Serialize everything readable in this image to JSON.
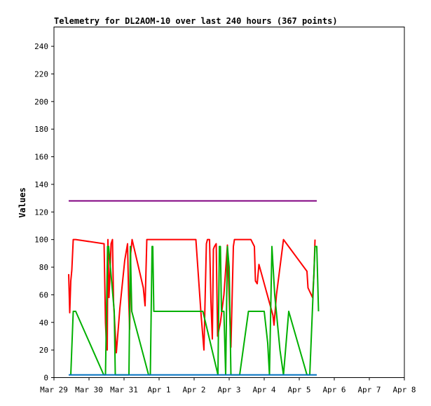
{
  "chart_data": {
    "type": "line",
    "title": "Telemetry for DL2AOM-10 over last 240 hours (367 points)",
    "xlabel": "",
    "ylabel": "Values",
    "x_ticks": [
      "Mar 29",
      "Mar 30",
      "Mar 31",
      "Apr 1",
      "Apr 2",
      "Apr 3",
      "Apr 4",
      "Apr 5",
      "Apr 6",
      "Apr 7",
      "Apr 8"
    ],
    "xlim": [
      0,
      10
    ],
    "ylim": [
      0,
      254
    ],
    "y_ticks": [
      0,
      20,
      40,
      60,
      80,
      100,
      120,
      140,
      160,
      180,
      200,
      220,
      240
    ],
    "grid": false,
    "series": [
      {
        "color": "#ff0000",
        "points": [
          [
            0.42,
            75
          ],
          [
            0.45,
            47
          ],
          [
            0.48,
            70
          ],
          [
            0.51,
            78
          ],
          [
            0.55,
            100
          ],
          [
            0.62,
            100
          ],
          [
            1.43,
            97
          ],
          [
            1.47,
            40
          ],
          [
            1.5,
            22
          ],
          [
            1.52,
            20
          ],
          [
            1.54,
            100
          ],
          [
            1.57,
            58
          ],
          [
            1.6,
            75
          ],
          [
            1.63,
            97
          ],
          [
            1.67,
            100
          ],
          [
            1.7,
            55
          ],
          [
            1.78,
            18
          ],
          [
            1.88,
            50
          ],
          [
            2.02,
            85
          ],
          [
            2.1,
            97
          ],
          [
            2.13,
            60
          ],
          [
            2.16,
            35
          ],
          [
            2.19,
            90
          ],
          [
            2.23,
            100
          ],
          [
            2.55,
            65
          ],
          [
            2.6,
            52
          ],
          [
            2.65,
            100
          ],
          [
            3.1,
            100
          ],
          [
            4.05,
            100
          ],
          [
            4.2,
            45
          ],
          [
            4.28,
            20
          ],
          [
            4.35,
            97
          ],
          [
            4.38,
            100
          ],
          [
            4.44,
            100
          ],
          [
            4.48,
            55
          ],
          [
            4.52,
            28
          ],
          [
            4.55,
            93
          ],
          [
            4.58,
            95
          ],
          [
            4.63,
            97
          ],
          [
            4.67,
            30
          ],
          [
            4.75,
            40
          ],
          [
            4.85,
            60
          ],
          [
            4.95,
            96
          ],
          [
            5.05,
            22
          ],
          [
            5.12,
            95
          ],
          [
            5.15,
            100
          ],
          [
            5.45,
            100
          ],
          [
            5.62,
            100
          ],
          [
            5.72,
            95
          ],
          [
            5.75,
            70
          ],
          [
            5.8,
            68
          ],
          [
            5.85,
            82
          ],
          [
            6.25,
            45
          ],
          [
            6.28,
            38
          ],
          [
            6.35,
            60
          ],
          [
            6.55,
            100
          ],
          [
            7.22,
            77
          ],
          [
            7.25,
            65
          ],
          [
            7.38,
            58
          ],
          [
            7.42,
            75
          ],
          [
            7.45,
            100
          ]
        ]
      },
      {
        "color": "#00b000",
        "points": [
          [
            0.48,
            2
          ],
          [
            0.55,
            48
          ],
          [
            0.62,
            48
          ],
          [
            1.42,
            2
          ],
          [
            1.47,
            2
          ],
          [
            1.53,
            95
          ],
          [
            1.56,
            95
          ],
          [
            1.72,
            48
          ],
          [
            1.75,
            2
          ],
          [
            1.82,
            2
          ],
          [
            2.14,
            2
          ],
          [
            2.18,
            95
          ],
          [
            2.22,
            48
          ],
          [
            2.7,
            2
          ],
          [
            2.75,
            2
          ],
          [
            2.8,
            95
          ],
          [
            2.82,
            95
          ],
          [
            2.85,
            48
          ],
          [
            3.25,
            48
          ],
          [
            4.25,
            48
          ],
          [
            4.68,
            2
          ],
          [
            4.72,
            95
          ],
          [
            4.75,
            95
          ],
          [
            4.78,
            48
          ],
          [
            4.85,
            48
          ],
          [
            4.9,
            2
          ],
          [
            4.95,
            95
          ],
          [
            5.0,
            80
          ],
          [
            5.05,
            2
          ],
          [
            5.3,
            2
          ],
          [
            5.55,
            48
          ],
          [
            5.75,
            48
          ],
          [
            6.0,
            48
          ],
          [
            6.1,
            25
          ],
          [
            6.15,
            2
          ],
          [
            6.22,
            95
          ],
          [
            6.3,
            60
          ],
          [
            6.45,
            20
          ],
          [
            6.55,
            2
          ],
          [
            6.7,
            48
          ],
          [
            7.22,
            2
          ],
          [
            7.3,
            2
          ],
          [
            7.45,
            95
          ],
          [
            7.5,
            95
          ],
          [
            7.55,
            48
          ]
        ]
      },
      {
        "color": "#800080",
        "points": [
          [
            0.42,
            128
          ],
          [
            7.5,
            128
          ]
        ]
      },
      {
        "color": "#0070c0",
        "points": [
          [
            0.42,
            2
          ],
          [
            7.5,
            2
          ]
        ]
      }
    ]
  }
}
